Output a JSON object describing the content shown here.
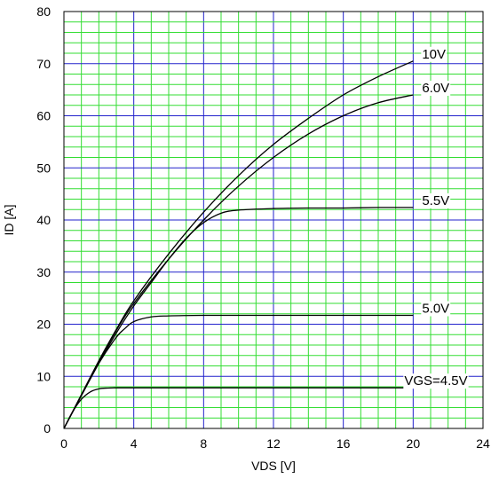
{
  "chart_data": {
    "type": "line",
    "title": "",
    "xlabel": "VDS [V]",
    "ylabel": "ID [A]",
    "xlim": [
      0,
      24
    ],
    "ylim": [
      0,
      80
    ],
    "x_ticks": [
      "0",
      "4",
      "8",
      "12",
      "16",
      "20",
      "24"
    ],
    "y_ticks": [
      "0",
      "10",
      "20",
      "30",
      "40",
      "50",
      "60",
      "70",
      "80"
    ],
    "grid": true,
    "colors": {
      "minor_grid": "#33dd33",
      "major_grid": "#2222cc",
      "curve": "#000000"
    },
    "series": [
      {
        "name": "10V",
        "x": [
          0,
          1,
          2,
          3,
          4,
          6,
          8,
          10,
          12,
          14,
          16,
          18,
          20
        ],
        "y": [
          0,
          6.5,
          13,
          19,
          24.5,
          33.5,
          41.5,
          48.5,
          54.5,
          59.5,
          64,
          67.5,
          70.5
        ]
      },
      {
        "name": "6.0V",
        "x": [
          0,
          1,
          2,
          3,
          4,
          6,
          8,
          10,
          12,
          14,
          16,
          18,
          20
        ],
        "y": [
          0,
          6.4,
          12.8,
          18.8,
          24,
          32.5,
          40,
          46.5,
          52,
          56.5,
          60,
          62.5,
          64
        ]
      },
      {
        "name": "5.5V",
        "x": [
          0,
          1,
          2,
          3,
          4,
          5,
          6,
          7,
          8,
          9,
          10,
          12,
          14,
          16,
          18,
          20
        ],
        "y": [
          0,
          6.3,
          12.5,
          18.3,
          23.5,
          28,
          32.5,
          36.5,
          39.5,
          41.3,
          41.9,
          42.2,
          42.3,
          42.3,
          42.4,
          42.4
        ]
      },
      {
        "name": "5.0V",
        "x": [
          0,
          1,
          2,
          3,
          3.5,
          4,
          5,
          6,
          8,
          10,
          14,
          20
        ],
        "y": [
          0,
          6.3,
          12.5,
          17.5,
          19.2,
          20.5,
          21.4,
          21.6,
          21.7,
          21.7,
          21.7,
          21.7
        ]
      },
      {
        "name": "VGS=4.5V",
        "x": [
          0,
          0.5,
          1,
          1.5,
          2,
          2.5,
          3,
          4,
          6,
          10,
          20
        ],
        "y": [
          0,
          3.2,
          5.6,
          7.0,
          7.6,
          7.75,
          7.8,
          7.8,
          7.8,
          7.8,
          7.8
        ]
      }
    ],
    "curve_labels": [
      {
        "text": "10V",
        "series": "10V"
      },
      {
        "text": "6.0V",
        "series": "6.0V"
      },
      {
        "text": "5.5V",
        "series": "5.5V"
      },
      {
        "text": "5.0V",
        "series": "5.0V"
      },
      {
        "text": "VGS=4.5V",
        "series": "VGS=4.5V"
      }
    ]
  }
}
